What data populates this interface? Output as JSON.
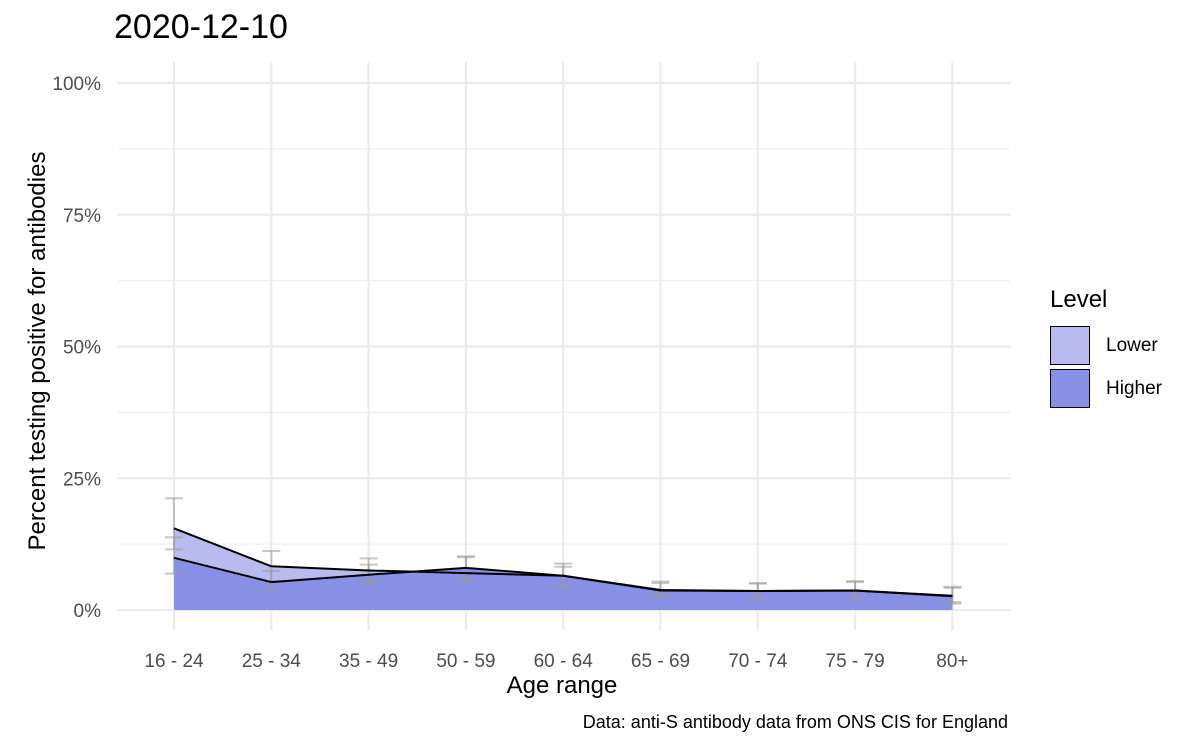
{
  "title": "2020-12-10",
  "caption": "Data: anti-S antibody data from ONS CIS for England",
  "chart_data": {
    "type": "area",
    "title": "2020-12-10",
    "xlabel": "Age range",
    "ylabel": "Percent testing positive for antibodies",
    "categories": [
      "16 - 24",
      "25 - 34",
      "35 - 49",
      "50 - 59",
      "60 - 64",
      "65 - 69",
      "70 - 74",
      "75 - 79",
      "80+"
    ],
    "ylim": [
      0,
      100
    ],
    "yticks": [
      0,
      25,
      50,
      75,
      100
    ],
    "ytick_labels": [
      "0%",
      "25%",
      "50%",
      "75%",
      "100%"
    ],
    "grid": true,
    "legend": {
      "title": "Level",
      "position": "right"
    },
    "series": [
      {
        "name": "Lower",
        "color": "#b9bbf0",
        "values": [
          15.5,
          8.3,
          7.5,
          7.0,
          6.5,
          3.8,
          3.6,
          3.7,
          2.7
        ],
        "error_low": [
          11.5,
          5.5,
          5.5,
          5.3,
          4.5,
          2.8,
          2.3,
          2.3,
          1.5
        ],
        "error_high": [
          21.2,
          11.2,
          9.8,
          10.2,
          8.8,
          5.4,
          5.1,
          5.5,
          4.4
        ]
      },
      {
        "name": "Higher",
        "color": "#8890e6",
        "values": [
          9.9,
          5.3,
          6.7,
          8.0,
          6.5,
          3.7,
          3.6,
          3.7,
          2.6
        ],
        "error_low": [
          6.9,
          3.9,
          5.0,
          5.8,
          4.4,
          2.6,
          2.1,
          2.1,
          1.2
        ],
        "error_high": [
          13.8,
          7.4,
          8.6,
          10.0,
          8.2,
          5.1,
          5.0,
          5.3,
          4.2
        ]
      }
    ]
  }
}
